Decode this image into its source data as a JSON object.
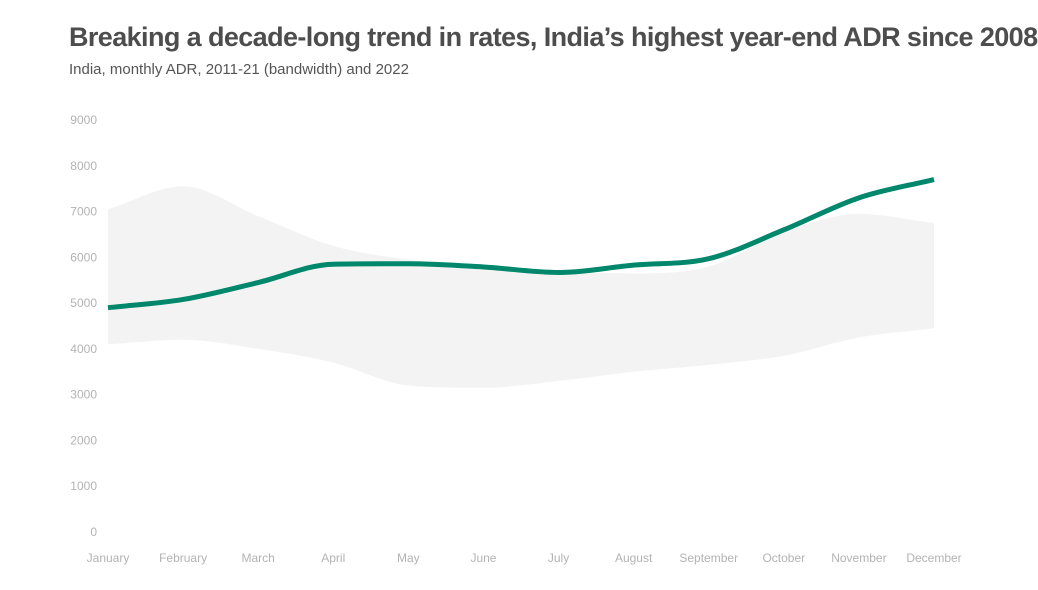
{
  "chart_data": {
    "type": "area",
    "title": "Breaking a decade-long trend in rates, India’s highest year-end ADR since 2008",
    "subtitle": "India, monthly ADR, 2011-21 (bandwidth) and 2022",
    "categories": [
      "January",
      "February",
      "March",
      "April",
      "May",
      "June",
      "July",
      "August",
      "September",
      "October",
      "November",
      "December"
    ],
    "yticks": [
      "0",
      "1000",
      "2000",
      "3000",
      "4000",
      "5000",
      "6000",
      "7000",
      "8000",
      "9000"
    ],
    "ylim": [
      0,
      9000
    ],
    "grid": false,
    "legend": "none",
    "series": [
      {
        "kind": "band",
        "low": [
          4100,
          4200,
          4000,
          3700,
          3200,
          3150,
          3300,
          3500,
          3650,
          3850,
          4250,
          4450
        ],
        "high": [
          7050,
          7550,
          6900,
          6250,
          5950,
          5800,
          5700,
          5650,
          5800,
          6550,
          6950,
          6750
        ],
        "color": "#f3f3f3"
      },
      {
        "kind": "line",
        "values": [
          4900,
          5080,
          5450,
          5850,
          5860,
          5790,
          5670,
          5830,
          5970,
          6600,
          7300,
          7700
        ],
        "color": "#00876c"
      }
    ]
  }
}
